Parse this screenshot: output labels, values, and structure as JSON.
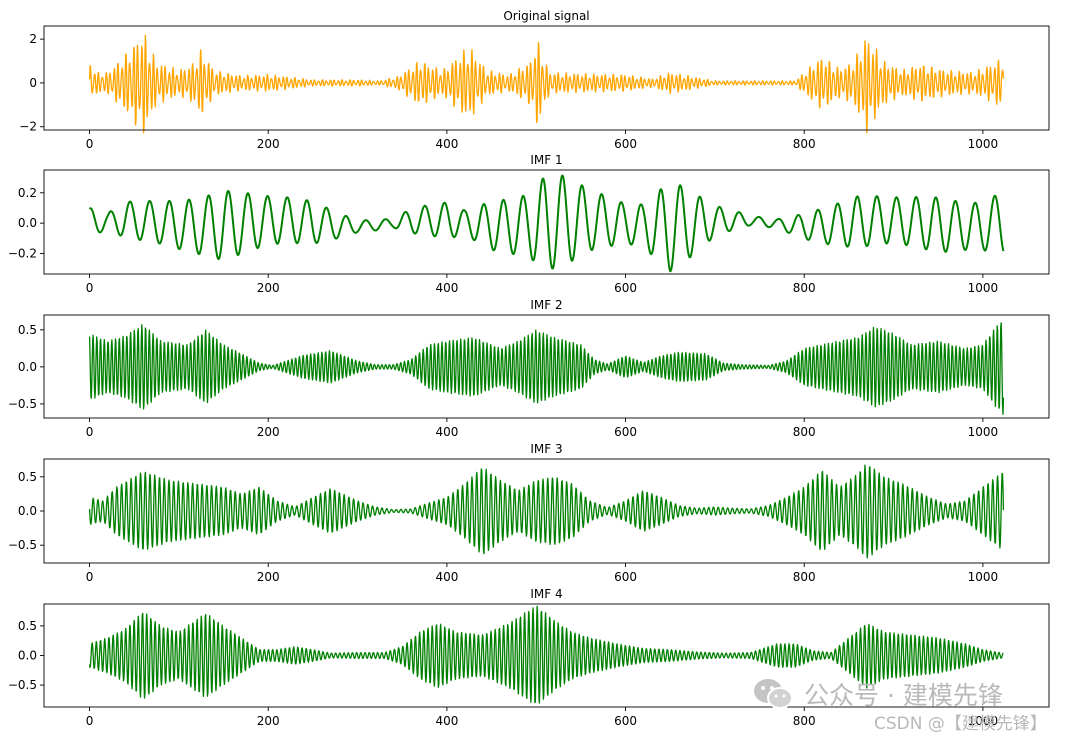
{
  "chart_data": [
    {
      "type": "line",
      "title": "Original signal",
      "color": "#FFA500",
      "xlim": [
        -51,
        1074
      ],
      "ylim": [
        -2.15,
        2.6
      ],
      "xticks": [
        0,
        200,
        400,
        600,
        800,
        1000
      ],
      "yticks": [
        -2,
        0,
        2
      ],
      "ytick_labels": [
        "−2",
        "0",
        "2"
      ],
      "series": [
        {
          "x": [
            0,
            1023
          ],
          "envelope": [
            [
              0,
              1.0
            ],
            [
              8,
              0.5
            ],
            [
              20,
              0.5
            ],
            [
              45,
              1.6
            ],
            [
              60,
              2.5
            ],
            [
              75,
              1.0
            ],
            [
              100,
              0.6
            ],
            [
              115,
              0.9
            ],
            [
              125,
              1.6
            ],
            [
              140,
              0.6
            ],
            [
              170,
              0.35
            ],
            [
              200,
              0.4
            ],
            [
              220,
              0.3
            ],
            [
              250,
              0.15
            ],
            [
              300,
              0.15
            ],
            [
              325,
              0.1
            ],
            [
              345,
              0.3
            ],
            [
              370,
              1.1
            ],
            [
              395,
              0.6
            ],
            [
              425,
              1.75
            ],
            [
              445,
              0.6
            ],
            [
              470,
              0.4
            ],
            [
              495,
              1.1
            ],
            [
              500,
              2.2
            ],
            [
              515,
              0.5
            ],
            [
              540,
              0.45
            ],
            [
              600,
              0.4
            ],
            [
              630,
              0.2
            ],
            [
              650,
              0.5
            ],
            [
              675,
              0.3
            ],
            [
              700,
              0.1
            ],
            [
              750,
              0.1
            ],
            [
              790,
              0.1
            ],
            [
              820,
              1.3
            ],
            [
              840,
              0.7
            ],
            [
              855,
              1.0
            ],
            [
              870,
              2.3
            ],
            [
              890,
              1.0
            ],
            [
              910,
              0.6
            ],
            [
              930,
              0.9
            ],
            [
              960,
              0.6
            ],
            [
              990,
              0.5
            ],
            [
              1010,
              0.9
            ],
            [
              1023,
              1.2
            ]
          ]
        }
      ]
    },
    {
      "type": "line",
      "title": "IMF 1",
      "color": "#008000",
      "xlim": [
        -51,
        1074
      ],
      "ylim": [
        -0.335,
        0.35
      ],
      "xticks": [
        0,
        200,
        400,
        600,
        800,
        1000
      ],
      "yticks": [
        -0.2,
        0.0,
        0.2
      ],
      "ytick_labels": [
        "−0.2",
        "0.0",
        "0.2"
      ],
      "series": [
        {
          "x": [
            0,
            1023
          ],
          "envelope": [
            [
              0,
              0.1
            ],
            [
              20,
              0.05
            ],
            [
              40,
              0.12
            ],
            [
              80,
              0.14
            ],
            [
              120,
              0.18
            ],
            [
              150,
              0.23
            ],
            [
              200,
              0.16
            ],
            [
              250,
              0.14
            ],
            [
              300,
              0.04
            ],
            [
              340,
              0.03
            ],
            [
              360,
              0.08
            ],
            [
              400,
              0.12
            ],
            [
              420,
              0.08
            ],
            [
              450,
              0.16
            ],
            [
              490,
              0.2
            ],
            [
              510,
              0.31
            ],
            [
              530,
              0.3
            ],
            [
              560,
              0.2
            ],
            [
              600,
              0.13
            ],
            [
              620,
              0.14
            ],
            [
              650,
              0.3
            ],
            [
              665,
              0.25
            ],
            [
              700,
              0.1
            ],
            [
              740,
              0.03
            ],
            [
              770,
              0.03
            ],
            [
              810,
              0.1
            ],
            [
              860,
              0.17
            ],
            [
              900,
              0.15
            ],
            [
              950,
              0.18
            ],
            [
              990,
              0.15
            ],
            [
              1023,
              0.2
            ]
          ]
        }
      ]
    },
    {
      "type": "line",
      "title": "IMF 2",
      "color": "#008000",
      "xlim": [
        -51,
        1074
      ],
      "ylim": [
        -0.69,
        0.7
      ],
      "xticks": [
        0,
        200,
        400,
        600,
        800,
        1000
      ],
      "yticks": [
        -0.5,
        0.0,
        0.5
      ],
      "ytick_labels": [
        "−0.5",
        "0.0",
        "0.5"
      ],
      "series": [
        {
          "x": [
            0,
            1023
          ],
          "envelope": [
            [
              0,
              0.45
            ],
            [
              20,
              0.35
            ],
            [
              40,
              0.42
            ],
            [
              60,
              0.58
            ],
            [
              80,
              0.35
            ],
            [
              110,
              0.3
            ],
            [
              130,
              0.5
            ],
            [
              150,
              0.3
            ],
            [
              170,
              0.18
            ],
            [
              190,
              0.05
            ],
            [
              205,
              0.02
            ],
            [
              220,
              0.08
            ],
            [
              240,
              0.16
            ],
            [
              270,
              0.22
            ],
            [
              300,
              0.08
            ],
            [
              320,
              0.03
            ],
            [
              340,
              0.03
            ],
            [
              360,
              0.1
            ],
            [
              380,
              0.3
            ],
            [
              400,
              0.35
            ],
            [
              430,
              0.4
            ],
            [
              460,
              0.25
            ],
            [
              480,
              0.35
            ],
            [
              500,
              0.5
            ],
            [
              520,
              0.4
            ],
            [
              550,
              0.3
            ],
            [
              565,
              0.1
            ],
            [
              580,
              0.04
            ],
            [
              600,
              0.15
            ],
            [
              620,
              0.06
            ],
            [
              640,
              0.15
            ],
            [
              660,
              0.2
            ],
            [
              690,
              0.18
            ],
            [
              710,
              0.05
            ],
            [
              730,
              0.03
            ],
            [
              760,
              0.02
            ],
            [
              780,
              0.08
            ],
            [
              800,
              0.25
            ],
            [
              830,
              0.33
            ],
            [
              860,
              0.4
            ],
            [
              880,
              0.55
            ],
            [
              900,
              0.45
            ],
            [
              920,
              0.3
            ],
            [
              950,
              0.35
            ],
            [
              980,
              0.25
            ],
            [
              1000,
              0.3
            ],
            [
              1015,
              0.55
            ],
            [
              1023,
              0.65
            ]
          ]
        }
      ]
    },
    {
      "type": "line",
      "title": "IMF 3",
      "color": "#008000",
      "xlim": [
        -51,
        1074
      ],
      "ylim": [
        -0.76,
        0.76
      ],
      "xticks": [
        0,
        200,
        400,
        600,
        800,
        1000
      ],
      "yticks": [
        -0.5,
        0.0,
        0.5
      ],
      "ytick_labels": [
        "−0.5",
        "0.0",
        "0.5"
      ],
      "series": [
        {
          "x": [
            0,
            1023
          ],
          "envelope": [
            [
              0,
              0.2
            ],
            [
              15,
              0.15
            ],
            [
              30,
              0.35
            ],
            [
              60,
              0.58
            ],
            [
              90,
              0.45
            ],
            [
              120,
              0.4
            ],
            [
              150,
              0.35
            ],
            [
              170,
              0.25
            ],
            [
              190,
              0.35
            ],
            [
              210,
              0.15
            ],
            [
              230,
              0.06
            ],
            [
              250,
              0.2
            ],
            [
              270,
              0.33
            ],
            [
              300,
              0.15
            ],
            [
              320,
              0.06
            ],
            [
              340,
              0.02
            ],
            [
              360,
              0.03
            ],
            [
              380,
              0.12
            ],
            [
              400,
              0.2
            ],
            [
              420,
              0.4
            ],
            [
              440,
              0.65
            ],
            [
              460,
              0.45
            ],
            [
              480,
              0.3
            ],
            [
              500,
              0.45
            ],
            [
              520,
              0.5
            ],
            [
              540,
              0.4
            ],
            [
              560,
              0.15
            ],
            [
              580,
              0.05
            ],
            [
              600,
              0.15
            ],
            [
              620,
              0.3
            ],
            [
              640,
              0.2
            ],
            [
              660,
              0.08
            ],
            [
              680,
              0.04
            ],
            [
              700,
              0.06
            ],
            [
              720,
              0.04
            ],
            [
              740,
              0.03
            ],
            [
              760,
              0.08
            ],
            [
              780,
              0.2
            ],
            [
              800,
              0.35
            ],
            [
              820,
              0.6
            ],
            [
              840,
              0.35
            ],
            [
              860,
              0.55
            ],
            [
              870,
              0.7
            ],
            [
              890,
              0.5
            ],
            [
              910,
              0.4
            ],
            [
              940,
              0.2
            ],
            [
              960,
              0.1
            ],
            [
              980,
              0.15
            ],
            [
              1000,
              0.35
            ],
            [
              1023,
              0.58
            ]
          ]
        }
      ]
    },
    {
      "type": "line",
      "title": "IMF 4",
      "color": "#008000",
      "xlim": [
        -51,
        1074
      ],
      "ylim": [
        -0.87,
        0.87
      ],
      "xticks": [
        0,
        200,
        400,
        600,
        800,
        1000
      ],
      "yticks": [
        -0.5,
        0.0,
        0.5
      ],
      "ytick_labels": [
        "−0.5",
        "0.0",
        "0.5"
      ],
      "series": [
        {
          "x": [
            0,
            1023
          ],
          "envelope": [
            [
              0,
              0.2
            ],
            [
              20,
              0.3
            ],
            [
              40,
              0.45
            ],
            [
              60,
              0.75
            ],
            [
              80,
              0.5
            ],
            [
              100,
              0.4
            ],
            [
              130,
              0.72
            ],
            [
              150,
              0.5
            ],
            [
              170,
              0.3
            ],
            [
              190,
              0.1
            ],
            [
              210,
              0.1
            ],
            [
              230,
              0.15
            ],
            [
              250,
              0.1
            ],
            [
              270,
              0.04
            ],
            [
              300,
              0.05
            ],
            [
              330,
              0.05
            ],
            [
              350,
              0.15
            ],
            [
              370,
              0.4
            ],
            [
              390,
              0.55
            ],
            [
              410,
              0.4
            ],
            [
              440,
              0.35
            ],
            [
              470,
              0.55
            ],
            [
              500,
              0.85
            ],
            [
              520,
              0.6
            ],
            [
              540,
              0.4
            ],
            [
              560,
              0.3
            ],
            [
              590,
              0.2
            ],
            [
              620,
              0.12
            ],
            [
              650,
              0.1
            ],
            [
              680,
              0.06
            ],
            [
              710,
              0.04
            ],
            [
              740,
              0.05
            ],
            [
              770,
              0.2
            ],
            [
              790,
              0.2
            ],
            [
              810,
              0.08
            ],
            [
              830,
              0.05
            ],
            [
              850,
              0.3
            ],
            [
              870,
              0.55
            ],
            [
              890,
              0.4
            ],
            [
              920,
              0.35
            ],
            [
              950,
              0.3
            ],
            [
              980,
              0.2
            ],
            [
              1000,
              0.1
            ],
            [
              1023,
              0.04
            ]
          ]
        }
      ]
    }
  ],
  "watermark": {
    "account_text": "公众号 · 建模先锋",
    "csdn_text": "CSDN @【建模先锋】",
    "logo_icon": "wechat-logo-icon"
  }
}
